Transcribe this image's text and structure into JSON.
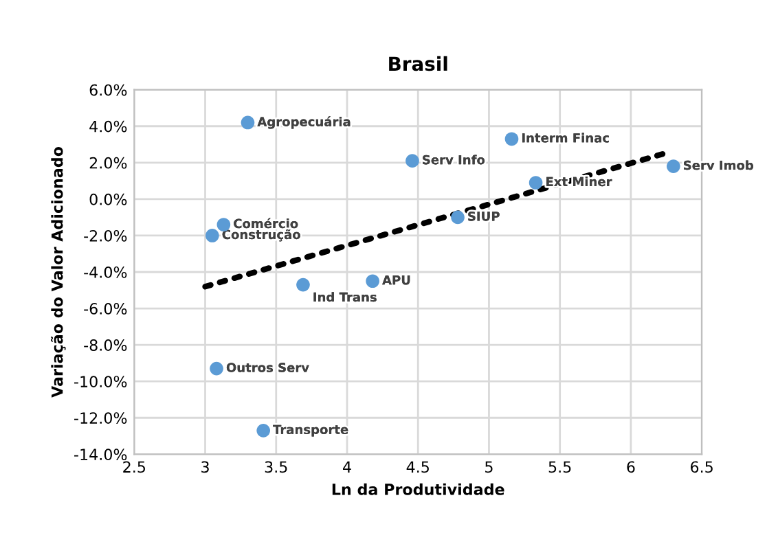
{
  "chart_data": {
    "type": "scatter",
    "title": "Brasil",
    "xlabel": "Ln da Produtividade",
    "ylabel": "Variação do Valor Adicionado",
    "xlim": [
      2.5,
      6.5
    ],
    "xticks": [
      {
        "value": 2.5,
        "label": "2.5"
      },
      {
        "value": 3,
        "label": "3"
      },
      {
        "value": 3.5,
        "label": "3.5"
      },
      {
        "value": 4,
        "label": "4"
      },
      {
        "value": 4.5,
        "label": "4.5"
      },
      {
        "value": 5,
        "label": "5"
      },
      {
        "value": 5.5,
        "label": "5.5"
      },
      {
        "value": 6,
        "label": "6"
      },
      {
        "value": 6.5,
        "label": "6.5"
      }
    ],
    "ylim": [
      -14,
      6
    ],
    "yticks": [
      {
        "value": -14,
        "label": "-14.0%"
      },
      {
        "value": -12,
        "label": "-12.0%"
      },
      {
        "value": -10,
        "label": "-10.0%"
      },
      {
        "value": -8,
        "label": "-8.0%"
      },
      {
        "value": -6,
        "label": "-6.0%"
      },
      {
        "value": -4,
        "label": "-4.0%"
      },
      {
        "value": -2,
        "label": "-2.0%"
      },
      {
        "value": 0,
        "label": "0.0%"
      },
      {
        "value": 2,
        "label": "2.0%"
      },
      {
        "value": 4,
        "label": "4.0%"
      },
      {
        "value": 6,
        "label": "6.0%"
      }
    ],
    "grid": true,
    "series": [
      {
        "marker": "circle",
        "color": "#5b9bd5",
        "x": [
          3.3,
          5.16,
          4.46,
          6.3,
          5.33,
          4.78,
          3.13,
          3.05,
          4.18,
          3.69,
          3.08,
          3.41
        ],
        "values": [
          4.2,
          3.3,
          2.1,
          1.8,
          0.9,
          -1.0,
          -1.4,
          -2.0,
          -4.5,
          -4.7,
          -9.3,
          -12.7
        ]
      },
      {
        "type": "line",
        "color": "#000000",
        "line_style": "dotted",
        "x": [
          3.0,
          6.28
        ],
        "values": [
          -4.8,
          2.6
        ]
      }
    ],
    "annotations": [
      {
        "text": "Agropecuária",
        "x": 3.3,
        "y": 4.2
      },
      {
        "text": "Interm Finac",
        "x": 5.16,
        "y": 3.3
      },
      {
        "text": "Serv Info",
        "x": 4.46,
        "y": 2.1
      },
      {
        "text": "Serv Imob",
        "x": 6.3,
        "y": 1.8
      },
      {
        "text": "Ext Miner",
        "x": 5.33,
        "y": 0.9
      },
      {
        "text": "SIUP",
        "x": 4.78,
        "y": -1.0
      },
      {
        "text": "Comércio",
        "x": 3.13,
        "y": -1.4
      },
      {
        "text": "Construção",
        "x": 3.05,
        "y": -2.0
      },
      {
        "text": "APU",
        "x": 4.18,
        "y": -4.5
      },
      {
        "text": "Ind Trans",
        "x": 3.69,
        "y": -4.7
      },
      {
        "text": "Outros Serv",
        "x": 3.08,
        "y": -9.3
      },
      {
        "text": "Transporte",
        "x": 3.41,
        "y": -12.7
      }
    ]
  }
}
